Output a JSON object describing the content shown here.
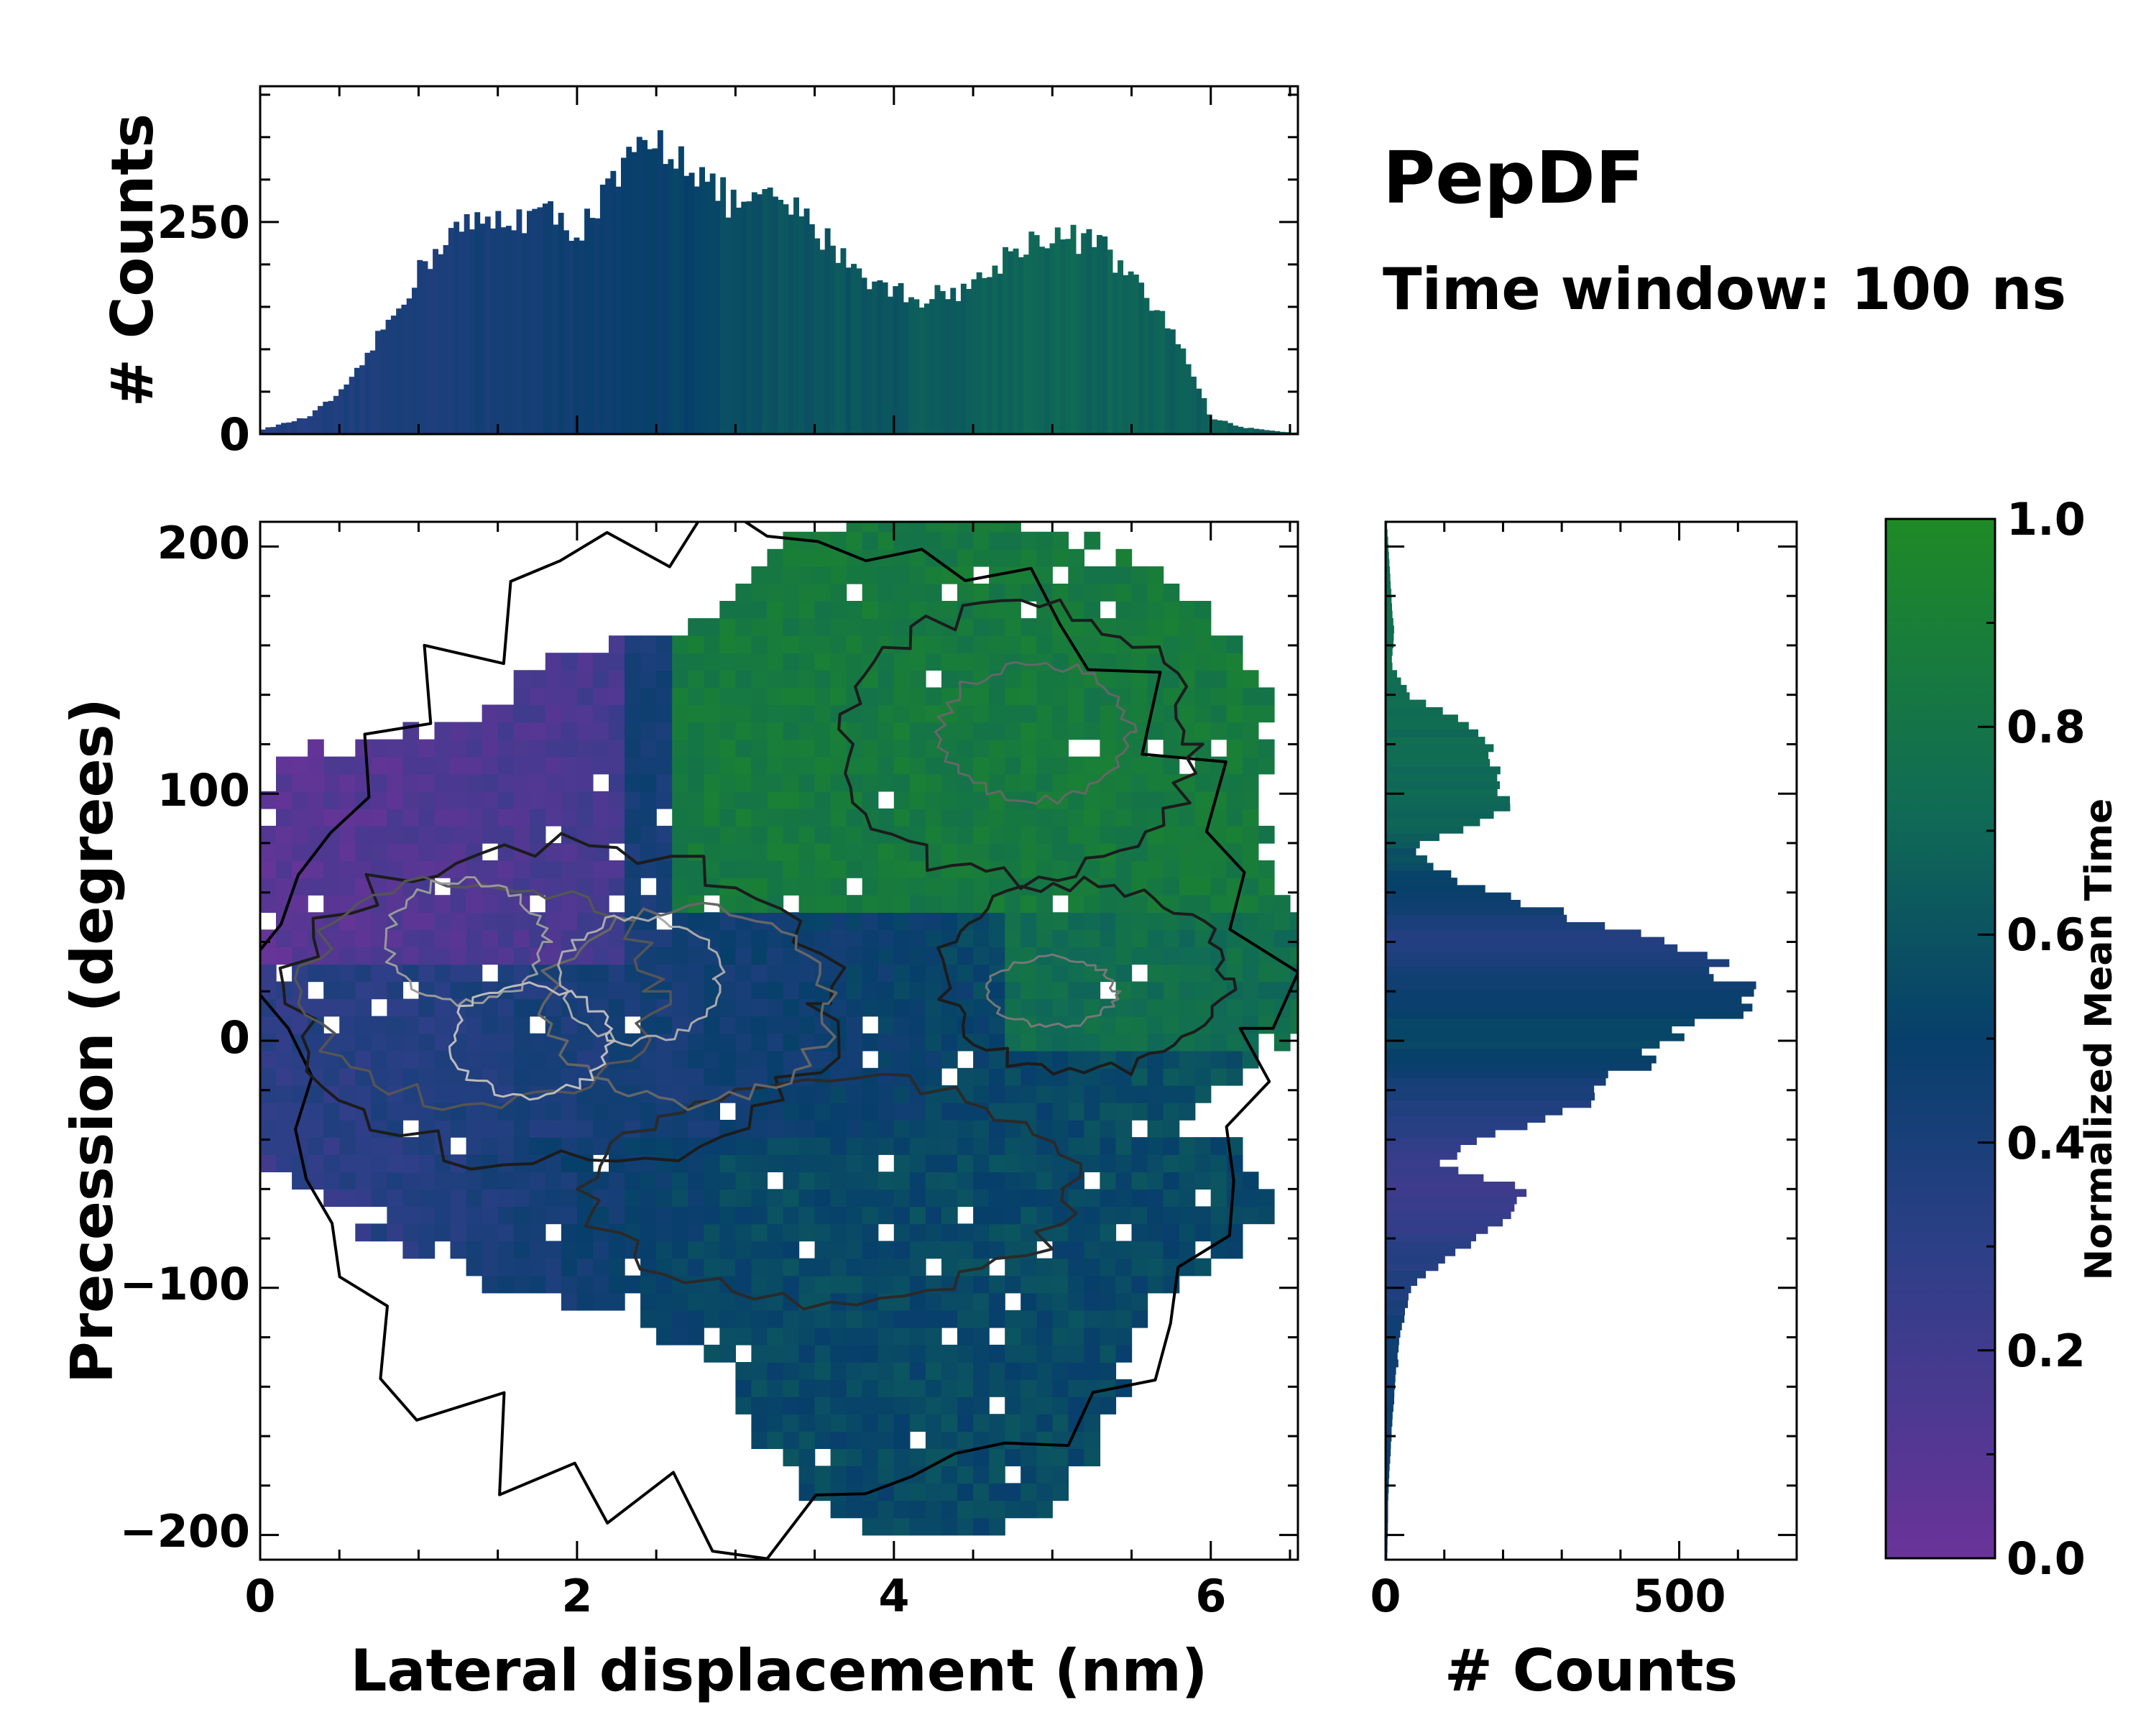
{
  "chart_data": {
    "type": "heatmap",
    "title": "PepDF",
    "subtitle": "Time window: 100 ns",
    "main": {
      "xlabel": "Lateral displacement (nm)",
      "ylabel": "Precession (degrees)",
      "xlim": [
        0,
        6.55
      ],
      "ylim": [
        -210,
        210
      ],
      "xticks": [
        0,
        2,
        4,
        6
      ],
      "xtick_labels": [
        "0",
        "2",
        "4",
        "6"
      ],
      "yticks": [
        -200,
        -100,
        0,
        100,
        200
      ],
      "ytick_labels": [
        "−200",
        "−100",
        "0",
        "100",
        "200"
      ],
      "regions": [
        {
          "name": "green upper region",
          "x": [
            3.0,
            6.1
          ],
          "y": [
            40,
            205
          ],
          "mean_time": 0.85
        },
        {
          "name": "purple upper-left region",
          "x": [
            0.0,
            2.2
          ],
          "y": [
            30,
            120
          ],
          "mean_time": 0.05
        },
        {
          "name": "central blue band",
          "x": [
            0.0,
            6.0
          ],
          "y": [
            -40,
            50
          ],
          "mean_time": 0.4
        },
        {
          "name": "dark blue lower region",
          "x": [
            3.0,
            5.9
          ],
          "y": [
            -195,
            -40
          ],
          "mean_time": 0.55
        },
        {
          "name": "green right cluster",
          "x": [
            4.5,
            6.5
          ],
          "y": [
            -10,
            60
          ],
          "mean_time": 0.75
        }
      ]
    },
    "top_histogram": {
      "ylabel": "# Counts",
      "ylim": [
        0,
        410
      ],
      "yticks": [
        0,
        250
      ],
      "ytick_labels": [
        "0",
        "250"
      ],
      "bin_width_nm": 0.033,
      "profile_x": [
        0,
        0.3,
        0.55,
        0.8,
        1.0,
        1.2,
        1.6,
        1.8,
        2.0,
        2.2,
        2.35,
        2.5,
        2.65,
        2.85,
        3.0,
        3.3,
        3.6,
        3.9,
        4.2,
        4.5,
        4.8,
        5.0,
        5.3,
        5.6,
        5.8,
        6.0,
        6.2,
        6.5
      ],
      "profile_counts": [
        5,
        20,
        55,
        130,
        190,
        240,
        255,
        260,
        240,
        285,
        325,
        340,
        335,
        290,
        270,
        275,
        225,
        175,
        160,
        175,
        225,
        235,
        225,
        160,
        110,
        20,
        8,
        2
      ],
      "color_profile_x": [
        0,
        1.5,
        2.5,
        3.2,
        4.0,
        4.8,
        6.5
      ],
      "color_profile_t": [
        0.35,
        0.42,
        0.5,
        0.6,
        0.62,
        0.7,
        0.65
      ]
    },
    "right_histogram": {
      "xlabel": "# Counts",
      "xlim": [
        0,
        700
      ],
      "xticks": [
        0,
        500
      ],
      "xtick_labels": [
        "0",
        "500"
      ],
      "bin_width_deg": 3,
      "profile_y": [
        -210,
        -180,
        -150,
        -120,
        -100,
        -95,
        -75,
        -60,
        -50,
        -40,
        -30,
        -10,
        5,
        15,
        20,
        28,
        35,
        50,
        65,
        78,
        85,
        95,
        110,
        125,
        140,
        152,
        165,
        180,
        200,
        210
      ],
      "profile_counts": [
        3,
        5,
        12,
        25,
        45,
        70,
        180,
        250,
        90,
        160,
        300,
        430,
        520,
        620,
        600,
        580,
        530,
        320,
        120,
        40,
        120,
        210,
        190,
        160,
        40,
        10,
        15,
        10,
        5,
        2
      ],
      "color_profile_y": [
        -210,
        -120,
        -60,
        -30,
        0,
        40,
        90,
        150,
        210
      ],
      "color_profile_t": [
        0.5,
        0.45,
        0.2,
        0.35,
        0.55,
        0.35,
        0.7,
        0.75,
        0.75
      ]
    },
    "colorbar": {
      "label": "Normalized Mean Time",
      "range": [
        0.0,
        1.0
      ],
      "ticks": [
        0.0,
        0.2,
        0.4,
        0.6,
        0.8,
        1.0
      ],
      "tick_labels": [
        "0.0",
        "0.2",
        "0.4",
        "0.6",
        "0.8",
        "1.0"
      ],
      "colors": [
        "#6a3399",
        "#2c3f87",
        "#073f6b",
        "#106b55",
        "#1f8a26"
      ]
    }
  }
}
